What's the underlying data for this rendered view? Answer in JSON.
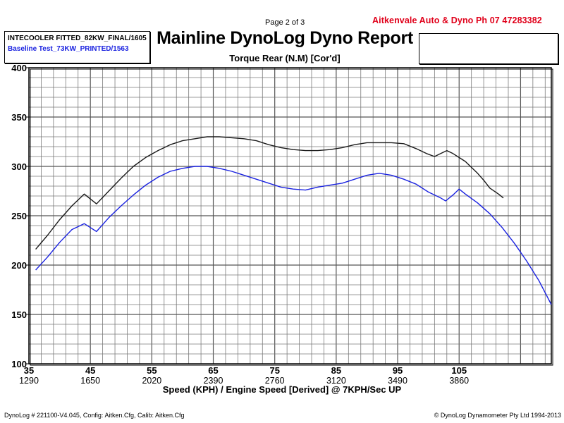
{
  "header": {
    "page": "Page 2 of 3",
    "company": "Aitkenvale Auto & Dyno  Ph 07 47283382",
    "title": "Mainline DynoLog Dyno Report",
    "subtitle": "Torque Rear (N.M) [Cor'd]"
  },
  "legend": [
    {
      "label": "INTECOOLER FITTED_82KW_FINAL/1605",
      "color": "#000000"
    },
    {
      "label": "Baseline Test_73KW_PRINTED/1563",
      "color": "#1a22e0"
    }
  ],
  "footer": {
    "left": "DynoLog # 221100-V4.045, Config: Aitken.Cfg, Calib: Aitken.Cfg",
    "right": "© DynoLog Dynamometer Pty Ltd 1994-2013"
  },
  "chart_data": {
    "type": "line",
    "title": "Torque Rear (N.M) [Cor'd]",
    "xlabel": "Speed (KPH) / Engine Speed [Derived] @ 7KPH/Sec UP",
    "ylabel": "",
    "xlim": [
      35,
      120
    ],
    "ylim": [
      100,
      400
    ],
    "x_ticks": [
      35,
      45,
      55,
      65,
      75,
      85,
      95,
      105
    ],
    "x_tick_labels": [
      "35",
      "45",
      "55",
      "65",
      "75",
      "85",
      "95",
      "105"
    ],
    "x_secondary_tick_labels": [
      "1290",
      "1650",
      "2020",
      "2390",
      "2760",
      "3120",
      "3490",
      "3860"
    ],
    "y_ticks": [
      100,
      150,
      200,
      250,
      300,
      350,
      400
    ],
    "y_tick_labels": [
      "100",
      "150",
      "200",
      "250",
      "300",
      "350",
      "400"
    ],
    "grid": true,
    "series": [
      {
        "name": "INTECOOLER FITTED_82KW_FINAL/1605",
        "color": "#1a1a1a",
        "x": [
          36.1,
          38,
          40,
          42,
          44,
          46,
          48,
          50,
          52,
          54,
          56,
          58,
          60,
          62,
          64,
          66,
          68,
          70,
          72,
          74,
          76,
          78,
          80,
          82,
          84,
          86,
          88,
          90,
          92,
          94,
          96,
          98,
          99.7,
          101,
          102,
          103,
          104,
          105,
          106,
          107,
          108,
          109,
          110,
          111.4,
          112.2
        ],
        "values": [
          216,
          230,
          246,
          260,
          272,
          262,
          275,
          288,
          300,
          309,
          316,
          322,
          326,
          328,
          330,
          330,
          329,
          328,
          326,
          322,
          319,
          317,
          316,
          316,
          317,
          319,
          322,
          324,
          324,
          324,
          323,
          318,
          313,
          310,
          313,
          316,
          313,
          309,
          305,
          299,
          293,
          286,
          278,
          272,
          268
        ]
      },
      {
        "name": "Baseline Test_73KW_PRINTED/1563",
        "color": "#1a22e0",
        "x": [
          36.1,
          38,
          40,
          42,
          44,
          46,
          48,
          50,
          52,
          54,
          56,
          58,
          60,
          62,
          64,
          66,
          68,
          70,
          72,
          74,
          76,
          78,
          80,
          82,
          84,
          86,
          88,
          90,
          92,
          94,
          96,
          98,
          100,
          102,
          102.8,
          104,
          105,
          106,
          108,
          110,
          112,
          114,
          116,
          118,
          120
        ],
        "values": [
          195,
          208,
          223,
          236,
          242,
          234,
          248,
          260,
          271,
          281,
          289,
          295,
          298,
          300,
          300,
          298,
          295,
          291,
          287,
          283,
          279,
          277,
          276,
          279,
          281,
          283,
          287,
          291,
          293,
          291,
          287,
          282,
          274,
          268,
          265,
          271,
          277,
          272,
          263,
          252,
          238,
          222,
          204,
          184,
          160
        ]
      }
    ]
  }
}
